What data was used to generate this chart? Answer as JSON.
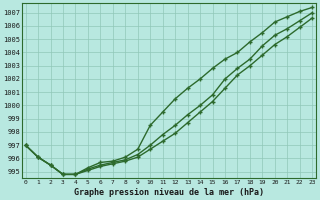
{
  "x": [
    0,
    1,
    2,
    3,
    4,
    5,
    6,
    7,
    8,
    9,
    10,
    11,
    12,
    13,
    14,
    15,
    16,
    17,
    18,
    19,
    20,
    21,
    22,
    23
  ],
  "line1": [
    997.0,
    996.1,
    995.5,
    994.8,
    994.8,
    995.3,
    995.7,
    995.8,
    996.1,
    996.7,
    998.5,
    999.5,
    1000.5,
    1001.3,
    1002.0,
    1002.8,
    1003.5,
    1004.0,
    1004.8,
    1005.5,
    1006.3,
    1006.7,
    1007.1,
    1007.4
  ],
  "line2": [
    997.0,
    996.1,
    995.5,
    994.8,
    994.8,
    995.2,
    995.5,
    995.7,
    995.9,
    996.3,
    997.0,
    997.8,
    998.5,
    999.3,
    1000.0,
    1000.8,
    1002.0,
    1002.8,
    1003.5,
    1004.5,
    1005.3,
    1005.8,
    1006.4,
    1007.0
  ],
  "line3": [
    997.0,
    996.1,
    995.5,
    994.8,
    994.8,
    995.1,
    995.4,
    995.6,
    995.8,
    996.1,
    996.7,
    997.3,
    997.9,
    998.7,
    999.5,
    1000.3,
    1001.3,
    1002.3,
    1003.0,
    1003.8,
    1004.6,
    1005.2,
    1005.9,
    1006.6
  ],
  "line_color": "#2d6a2d",
  "bg_color": "#b8e8e0",
  "grid_color": "#90c8b8",
  "xlabel": "Graphe pression niveau de la mer (hPa)",
  "ylim": [
    994.5,
    1007.7
  ],
  "yticks": [
    995,
    996,
    997,
    998,
    999,
    1000,
    1001,
    1002,
    1003,
    1004,
    1005,
    1006,
    1007
  ],
  "xticks": [
    0,
    1,
    2,
    3,
    4,
    5,
    6,
    7,
    8,
    9,
    10,
    11,
    12,
    13,
    14,
    15,
    16,
    17,
    18,
    19,
    20,
    21,
    22,
    23
  ],
  "marker": "+"
}
